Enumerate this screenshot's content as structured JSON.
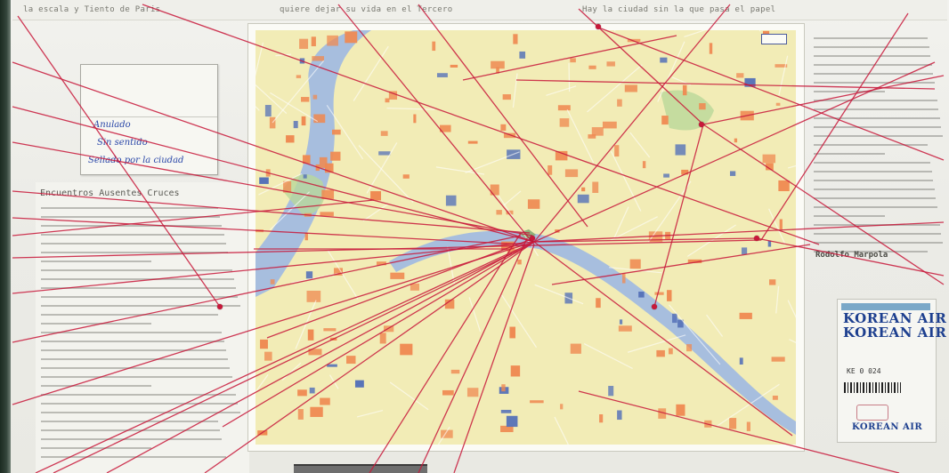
{
  "top_strip": {
    "text_left": "la escala y Tiento de Paris",
    "text_mid": "quiere dejar su vida en el Tercero",
    "text_right": "Hay la ciudad sin la que pasa el papel"
  },
  "note_card": {
    "line1": "Anulado",
    "line2": "Sin sentido",
    "line3": "Sellado por la ciudad"
  },
  "article_left": {
    "title": "Encuentros Ausentes Cruces"
  },
  "article_right": {
    "byline": "Rodolfo Marpola"
  },
  "ticket": {
    "airline": "KOREAN AIR",
    "airline_repeat": "KOREAN AIR",
    "airline_bottom": "KOREAN AIR",
    "code": "KE 0 024"
  },
  "colors": {
    "string": "#c8183a",
    "map_base": "#f2ecb6",
    "water": "#9fb9e2",
    "block_orange": "#ef8a52",
    "block_blue": "#5672b8"
  }
}
